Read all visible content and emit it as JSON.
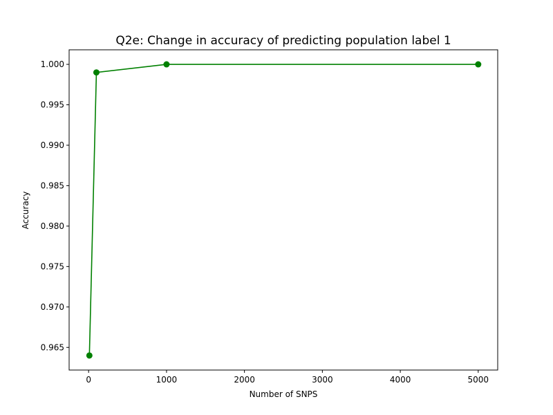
{
  "chart_data": {
    "type": "line",
    "title": "Q2e: Change in accuracy of predicting population label 1",
    "xlabel": "Number of SNPS",
    "ylabel": "Accuracy",
    "xlim": [
      -250,
      5250
    ],
    "ylim": [
      0.9622,
      1.0018
    ],
    "xticks": [
      0,
      1000,
      2000,
      3000,
      4000,
      5000
    ],
    "yticks": [
      0.965,
      0.97,
      0.975,
      0.98,
      0.985,
      0.99,
      0.995,
      1.0
    ],
    "ytick_labels": [
      "0.965",
      "0.970",
      "0.975",
      "0.980",
      "0.985",
      "0.990",
      "0.995",
      "1.000"
    ],
    "grid": false,
    "series": [
      {
        "color": "#008000",
        "marker": "circle",
        "x": [
          10,
          100,
          1000,
          5000
        ],
        "y": [
          0.964,
          0.999,
          1.0,
          1.0
        ]
      }
    ]
  }
}
